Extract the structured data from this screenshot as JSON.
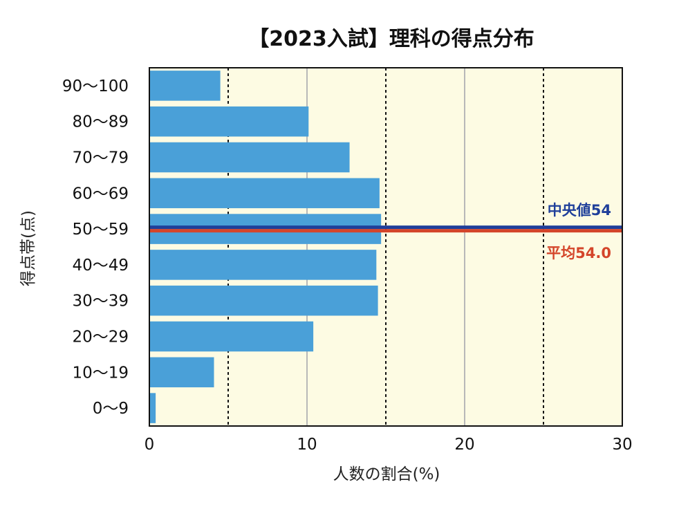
{
  "chart_data": {
    "type": "bar",
    "orientation": "horizontal",
    "title": "【2023入試】理科の得点分布",
    "xlabel": "人数の割合(%)",
    "ylabel": "得点帯(点)",
    "categories": [
      "90〜100",
      "80〜89",
      "70〜79",
      "60〜69",
      "50〜59",
      "40〜49",
      "30〜39",
      "20〜29",
      "10〜19",
      "0〜9"
    ],
    "values": [
      4.5,
      10.1,
      12.7,
      14.6,
      14.7,
      14.4,
      14.5,
      10.4,
      4.1,
      0.4
    ],
    "xlim": [
      0,
      30
    ],
    "xticks": [
      0,
      10,
      20,
      30
    ],
    "xtick_labels": [
      "0",
      "10",
      "20",
      "30"
    ],
    "grid": {
      "solid": [
        10,
        20
      ],
      "dashed": [
        5,
        15,
        25
      ]
    },
    "reference_lines": [
      {
        "label": "中央値54",
        "value": 54,
        "color": "#1f3f9a"
      },
      {
        "label": "平均54.0",
        "value": 54.0,
        "color": "#d4452a"
      }
    ],
    "colors": {
      "bar": "#4aa0d8",
      "plot_background": "#fdfbe3",
      "grid_solid": "#b8b8b8",
      "grid_dashed": "#111111"
    }
  }
}
